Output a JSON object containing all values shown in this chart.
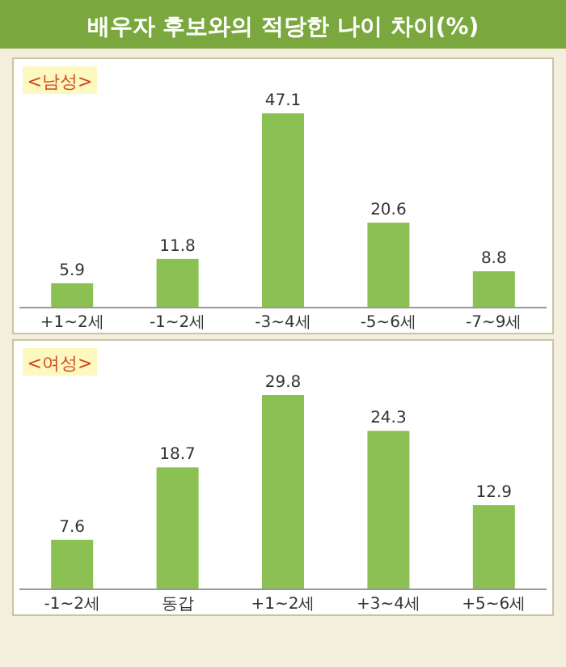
{
  "chart_data": [
    {
      "type": "bar",
      "title": "배우자 후보와의 적당한 나이 차이(%)",
      "subtitle": "<남성>",
      "categories": [
        "+1~2세",
        "-1~2세",
        "-3~4세",
        "-5~6세",
        "-7~9세"
      ],
      "values": [
        5.9,
        11.8,
        47.1,
        20.6,
        8.8
      ],
      "color": "#8bc152",
      "data_labels": true
    },
    {
      "type": "bar",
      "title": "<여성>",
      "categories": [
        "-1~2세",
        "동갑",
        "+1~2세",
        "+3~4세",
        "+5~6세"
      ],
      "values": [
        7.6,
        18.7,
        29.8,
        24.3,
        12.9
      ],
      "color": "#8bc152",
      "data_labels": true
    }
  ]
}
